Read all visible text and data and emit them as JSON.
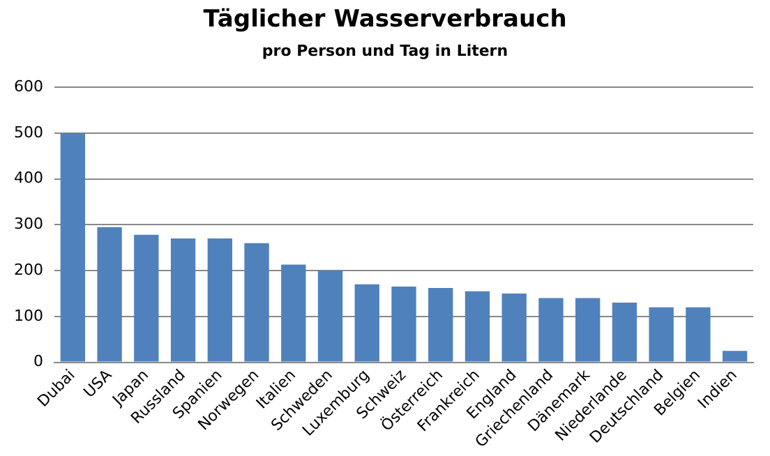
{
  "chart_data": {
    "type": "bar",
    "title": "Täglicher  Wasserverbrauch",
    "subtitle": "pro Person und Tag in Litern",
    "categories": [
      "Dubai",
      "USA",
      "Japan",
      "Russland",
      "Spanien",
      "Norwegen",
      "Italien",
      "Schweden",
      "Luxemburg",
      "Schweiz",
      "Österreich",
      "Frankreich",
      "England",
      "Griechenland",
      "Dänemark",
      "Niederlande",
      "Deutschland",
      "Belgien",
      "Indien"
    ],
    "values": [
      500,
      295,
      278,
      270,
      270,
      260,
      213,
      200,
      170,
      165,
      162,
      155,
      150,
      140,
      140,
      130,
      120,
      120,
      25
    ],
    "color": "#4f81bd",
    "ylim": [
      0,
      600
    ],
    "yticks": [
      0,
      100,
      200,
      300,
      400,
      500,
      600
    ],
    "grid": "y",
    "legend": false
  }
}
